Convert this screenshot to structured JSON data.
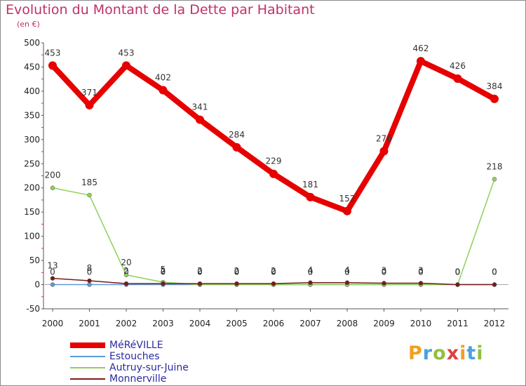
{
  "title": "Evolution du Montant de la Dette par Habitant",
  "subtitle": "(en €)",
  "logo_text": "Proxiti",
  "chart_data": {
    "type": "line",
    "title": "Evolution du Montant de la Dette par Habitant",
    "subtitle": "(en €)",
    "x": [
      "2000",
      "2001",
      "2002",
      "2003",
      "2004",
      "2005",
      "2006",
      "2007",
      "2008",
      "2009",
      "2010",
      "2011",
      "2012"
    ],
    "ylim": [
      -50,
      500
    ],
    "yticks": [
      -50,
      0,
      50,
      100,
      150,
      200,
      250,
      300,
      350,
      400,
      450,
      500
    ],
    "grid": false,
    "legend_position": "bottom-left",
    "series": [
      {
        "name": "MéRéVILLE",
        "color": "#e60000",
        "values": [
          453,
          371,
          453,
          402,
          341,
          284,
          229,
          181,
          152,
          276,
          462,
          426,
          384
        ],
        "labels": [
          "453",
          "371",
          "453",
          "402",
          "341",
          "284",
          "229",
          "181",
          "152",
          "276",
          "462",
          "426",
          "384"
        ]
      },
      {
        "name": "Estouches",
        "color": "#5b9bd5",
        "values": [
          0,
          0,
          0,
          0,
          0,
          0,
          0,
          0,
          0,
          0,
          0,
          0,
          0
        ],
        "labels": [
          "0",
          "0",
          "0",
          "0",
          "0",
          "0",
          "0",
          "0",
          "0",
          "0",
          "0",
          "0",
          "0"
        ]
      },
      {
        "name": "Autruy-sur-Juine",
        "color": "#8fd05a",
        "values": [
          200,
          185,
          20,
          5,
          0,
          0,
          0,
          0,
          0,
          0,
          0,
          0,
          218
        ],
        "labels": [
          "200",
          "185",
          "20",
          "5",
          "0",
          "0",
          "0",
          "0",
          "0",
          "0",
          "0",
          "0",
          "218"
        ]
      },
      {
        "name": "Monnerville",
        "color": "#7a1a1a",
        "values": [
          13,
          8,
          2,
          2,
          2,
          2,
          2,
          4,
          4,
          3,
          3,
          0,
          0
        ],
        "labels": [
          "13",
          "8",
          "2",
          "2",
          "2",
          "2",
          "2",
          "4",
          "4",
          "3",
          "3",
          "0",
          "0"
        ]
      }
    ]
  },
  "logo_colors": [
    "#f0a020",
    "#4aa0e0",
    "#90c040",
    "#e04040",
    "#f0a020",
    "#4aa0e0",
    "#90c040"
  ]
}
